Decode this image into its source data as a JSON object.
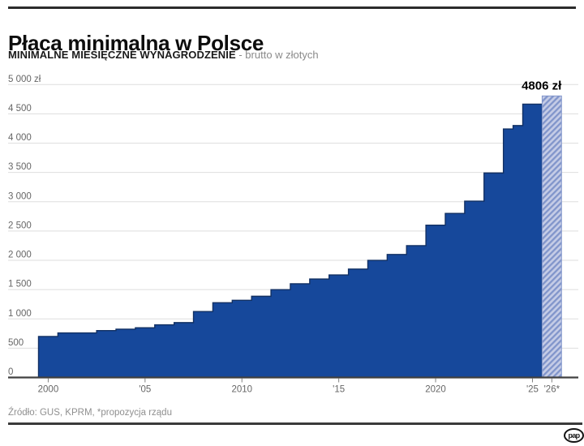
{
  "header": {
    "title": "Płaca minimalna w Polsce",
    "subtitle_bold": "MINIMALNE MIESIĘCZNE WYNAGRODZENIE",
    "subtitle_rest": " - brutto w złotych"
  },
  "chart_data": {
    "type": "area",
    "step": true,
    "title": "Płaca minimalna w Polsce",
    "subtitle": "MINIMALNE MIESIĘCZNE WYNAGRODZENIE - brutto w złotych",
    "xlabel": "",
    "ylabel": "",
    "unit": "zł",
    "ylim": [
      0,
      5000
    ],
    "ytick_step": 500,
    "ytick_labels": [
      "0",
      "500",
      "1 000",
      "1 500",
      "2 000",
      "2 500",
      "3 000",
      "3 500",
      "4 000",
      "4 500",
      "5 000 zł"
    ],
    "xticks": [
      {
        "year": 2000,
        "label": "2000"
      },
      {
        "year": 2005,
        "label": "'05"
      },
      {
        "year": 2010,
        "label": "2010"
      },
      {
        "year": 2015,
        "label": "'15"
      },
      {
        "year": 2020,
        "label": "2020"
      },
      {
        "year": 2025,
        "label": "'25"
      },
      {
        "year": 2026,
        "label": "'26*"
      }
    ],
    "steps": [
      {
        "from": 2000,
        "to": 2001,
        "value": 700
      },
      {
        "from": 2001,
        "to": 2003,
        "value": 760
      },
      {
        "from": 2003,
        "to": 2004,
        "value": 800
      },
      {
        "from": 2004,
        "to": 2005,
        "value": 824
      },
      {
        "from": 2005,
        "to": 2006,
        "value": 849
      },
      {
        "from": 2006,
        "to": 2007,
        "value": 899
      },
      {
        "from": 2007,
        "to": 2008,
        "value": 936
      },
      {
        "from": 2008,
        "to": 2009,
        "value": 1126
      },
      {
        "from": 2009,
        "to": 2010,
        "value": 1276
      },
      {
        "from": 2010,
        "to": 2011,
        "value": 1317
      },
      {
        "from": 2011,
        "to": 2012,
        "value": 1386
      },
      {
        "from": 2012,
        "to": 2013,
        "value": 1500
      },
      {
        "from": 2013,
        "to": 2014,
        "value": 1600
      },
      {
        "from": 2014,
        "to": 2015,
        "value": 1680
      },
      {
        "from": 2015,
        "to": 2016,
        "value": 1750
      },
      {
        "from": 2016,
        "to": 2017,
        "value": 1850
      },
      {
        "from": 2017,
        "to": 2018,
        "value": 2000
      },
      {
        "from": 2018,
        "to": 2019,
        "value": 2100
      },
      {
        "from": 2019,
        "to": 2020,
        "value": 2250
      },
      {
        "from": 2020,
        "to": 2021,
        "value": 2600
      },
      {
        "from": 2021,
        "to": 2022,
        "value": 2800
      },
      {
        "from": 2022,
        "to": 2023,
        "value": 3010
      },
      {
        "from": 2023,
        "to": 2024,
        "value": 3490
      },
      {
        "from": 2024,
        "to": 2024.5,
        "value": 4242
      },
      {
        "from": 2024.5,
        "to": 2025,
        "value": 4300
      },
      {
        "from": 2025,
        "to": 2026,
        "value": 4666
      },
      {
        "from": 2026,
        "to": 2027,
        "value": 4806,
        "projected": true
      }
    ],
    "annotation": {
      "text": "4806 zł",
      "value": 4806,
      "year": 2026
    },
    "legend": null,
    "grid": true,
    "colors": {
      "bar": "#16489b",
      "bar_edge": "#123063",
      "hatch_light": "#c5cce6",
      "hatch_dark": "#8195cb",
      "grid": "#dedede",
      "axis": "#404040",
      "tick": "#808080",
      "tick_text": "#666666",
      "annotation_text": "#000000"
    }
  },
  "footer": {
    "source": "Źródło: GUS, KPRM, *propozycja rządu",
    "logo": "pap"
  }
}
